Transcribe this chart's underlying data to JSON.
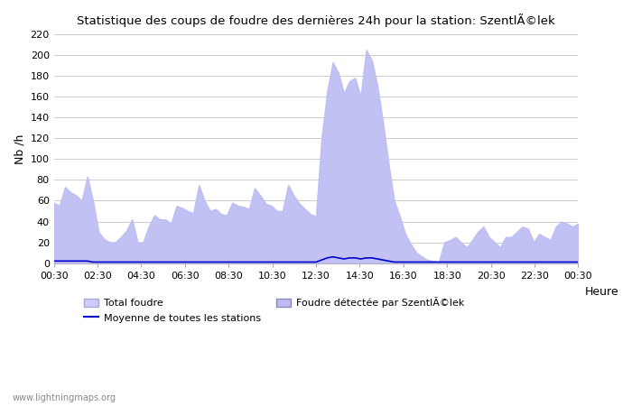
{
  "title": "Statistique des coups de foudre des dernières 24h pour la station: SzentlÃ©lek",
  "ylabel": "Nb /h",
  "xlabel": "Heure",
  "xlim": [
    0,
    24
  ],
  "ylim": [
    0,
    220
  ],
  "yticks": [
    0,
    20,
    40,
    60,
    80,
    100,
    120,
    140,
    160,
    180,
    200,
    220
  ],
  "xtick_labels": [
    "00:30",
    "02:30",
    "04:30",
    "06:30",
    "08:30",
    "10:30",
    "12:30",
    "14:30",
    "16:30",
    "18:30",
    "20:30",
    "22:30",
    "00:30"
  ],
  "xtick_positions": [
    0,
    2,
    4,
    6,
    8,
    10,
    12,
    14,
    16,
    18,
    20,
    22,
    24
  ],
  "background_color": "#ffffff",
  "plot_bg_color": "#ffffff",
  "grid_color": "#cccccc",
  "total_foudre_color": "#ccccff",
  "detected_color": "#bbbbee",
  "moyenne_color": "#0000cc",
  "watermark": "www.lightningmaps.org",
  "total_foudre": [
    58,
    55,
    73,
    68,
    65,
    60,
    83,
    60,
    30,
    23,
    20,
    20,
    25,
    31,
    42,
    20,
    20,
    35,
    46,
    42,
    42,
    38,
    55,
    53,
    50,
    48,
    75,
    60,
    50,
    52,
    47,
    46,
    58,
    55,
    54,
    52,
    72,
    65,
    57,
    55,
    50,
    50,
    75,
    65,
    57,
    52,
    47,
    45,
    120,
    165,
    193,
    183,
    163,
    175,
    178,
    160,
    205,
    195,
    170,
    135,
    95,
    60,
    45,
    28,
    18,
    10,
    6,
    3,
    2,
    1,
    20,
    22,
    25,
    20,
    15,
    22,
    30,
    35,
    25,
    20,
    15,
    25,
    25,
    30,
    35,
    33,
    20,
    28,
    25,
    22,
    35,
    40,
    38,
    35,
    38
  ],
  "detected": [
    58,
    55,
    73,
    68,
    65,
    60,
    83,
    60,
    30,
    23,
    20,
    20,
    25,
    31,
    42,
    20,
    20,
    35,
    46,
    42,
    42,
    38,
    55,
    53,
    50,
    48,
    75,
    60,
    50,
    52,
    47,
    46,
    58,
    55,
    54,
    52,
    72,
    65,
    57,
    55,
    50,
    50,
    75,
    65,
    57,
    52,
    47,
    45,
    120,
    165,
    193,
    183,
    163,
    175,
    178,
    160,
    205,
    195,
    170,
    135,
    95,
    60,
    45,
    28,
    18,
    10,
    6,
    3,
    2,
    1,
    20,
    22,
    25,
    20,
    15,
    22,
    30,
    35,
    25,
    20,
    15,
    25,
    25,
    30,
    35,
    33,
    20,
    28,
    25,
    22,
    35,
    40,
    38,
    35,
    38
  ],
  "moyenne": [
    2,
    2,
    2,
    2,
    2,
    2,
    2,
    1,
    1,
    1,
    1,
    1,
    1,
    1,
    1,
    1,
    1,
    1,
    1,
    1,
    1,
    1,
    1,
    1,
    1,
    1,
    1,
    1,
    1,
    1,
    1,
    1,
    1,
    1,
    1,
    1,
    1,
    1,
    1,
    1,
    1,
    1,
    1,
    1,
    1,
    1,
    1,
    1,
    3,
    5,
    6,
    5,
    4,
    5,
    5,
    4,
    5,
    5,
    4,
    3,
    2,
    1,
    1,
    1,
    1,
    1,
    1,
    1,
    1,
    1,
    1,
    1,
    1,
    1,
    1,
    1,
    1,
    1,
    1,
    1,
    1,
    1,
    1,
    1,
    1,
    1,
    1,
    1,
    1,
    1,
    1,
    1,
    1,
    1,
    1
  ]
}
